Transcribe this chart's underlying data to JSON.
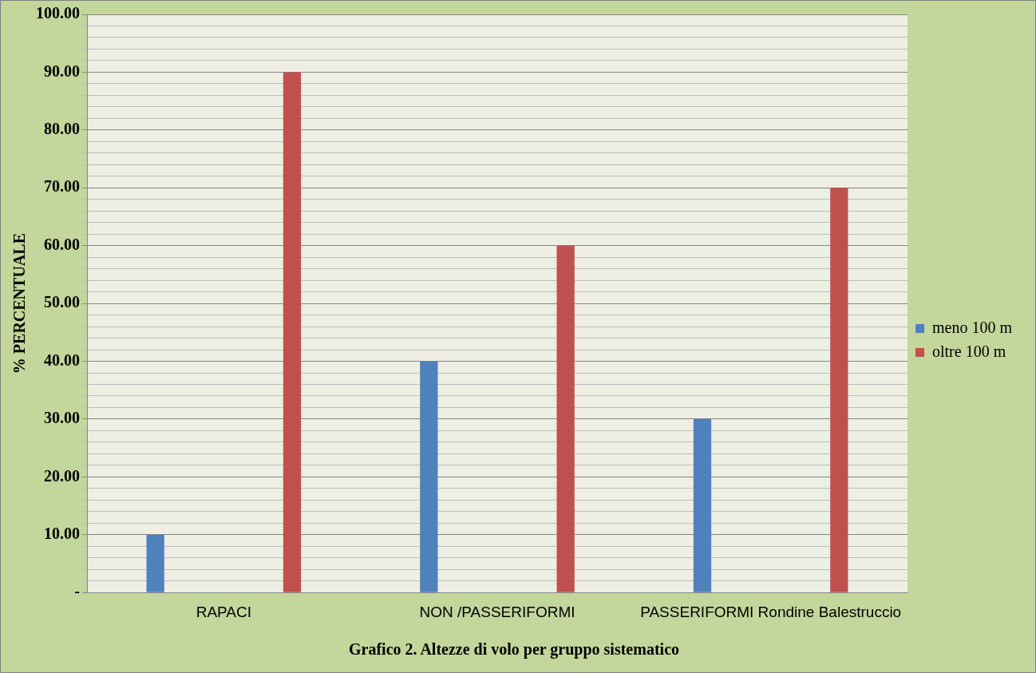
{
  "chart_data": {
    "type": "bar",
    "title": "Grafico 2. Altezze di volo per gruppo sistematico",
    "ylabel": "% PERCENTUALE",
    "categories": [
      "RAPACI",
      "NON /PASSERIFORMI",
      "PASSERIFORMI Rondine Balestruccio"
    ],
    "series": [
      {
        "name": "meno 100 m",
        "color": "#4f81bd",
        "values": [
          10,
          40,
          30
        ]
      },
      {
        "name": "oltre 100 m",
        "color": "#c0504d",
        "values": [
          90,
          60,
          70
        ]
      }
    ],
    "ylim": [
      0,
      100
    ],
    "yticks": [
      {
        "value": 0,
        "label": "-"
      },
      {
        "value": 2,
        "label": null
      },
      {
        "value": 4,
        "label": null
      },
      {
        "value": 6,
        "label": null
      },
      {
        "value": 8,
        "label": null
      },
      {
        "value": 10,
        "label": "10.00"
      },
      {
        "value": 12,
        "label": null
      },
      {
        "value": 14,
        "label": null
      },
      {
        "value": 16,
        "label": null
      },
      {
        "value": 18,
        "label": null
      },
      {
        "value": 20,
        "label": "20.00"
      },
      {
        "value": 22,
        "label": null
      },
      {
        "value": 24,
        "label": null
      },
      {
        "value": 26,
        "label": null
      },
      {
        "value": 28,
        "label": null
      },
      {
        "value": 30,
        "label": "30.00"
      },
      {
        "value": 32,
        "label": null
      },
      {
        "value": 34,
        "label": null
      },
      {
        "value": 36,
        "label": null
      },
      {
        "value": 38,
        "label": null
      },
      {
        "value": 40,
        "label": "40.00"
      },
      {
        "value": 42,
        "label": null
      },
      {
        "value": 44,
        "label": null
      },
      {
        "value": 46,
        "label": null
      },
      {
        "value": 48,
        "label": null
      },
      {
        "value": 50,
        "label": "50.00"
      },
      {
        "value": 52,
        "label": null
      },
      {
        "value": 54,
        "label": null
      },
      {
        "value": 56,
        "label": null
      },
      {
        "value": 58,
        "label": null
      },
      {
        "value": 60,
        "label": "60.00"
      },
      {
        "value": 62,
        "label": null
      },
      {
        "value": 64,
        "label": null
      },
      {
        "value": 66,
        "label": null
      },
      {
        "value": 68,
        "label": null
      },
      {
        "value": 70,
        "label": "70.00"
      },
      {
        "value": 72,
        "label": null
      },
      {
        "value": 74,
        "label": null
      },
      {
        "value": 76,
        "label": null
      },
      {
        "value": 78,
        "label": null
      },
      {
        "value": 80,
        "label": "80.00"
      },
      {
        "value": 82,
        "label": null
      },
      {
        "value": 84,
        "label": null
      },
      {
        "value": 86,
        "label": null
      },
      {
        "value": 88,
        "label": null
      },
      {
        "value": 90,
        "label": "90.00"
      },
      {
        "value": 92,
        "label": null
      },
      {
        "value": 94,
        "label": null
      },
      {
        "value": 96,
        "label": null
      },
      {
        "value": 98,
        "label": null
      },
      {
        "value": 100,
        "label": "100.00"
      }
    ],
    "grid": "y",
    "legend": "right"
  }
}
